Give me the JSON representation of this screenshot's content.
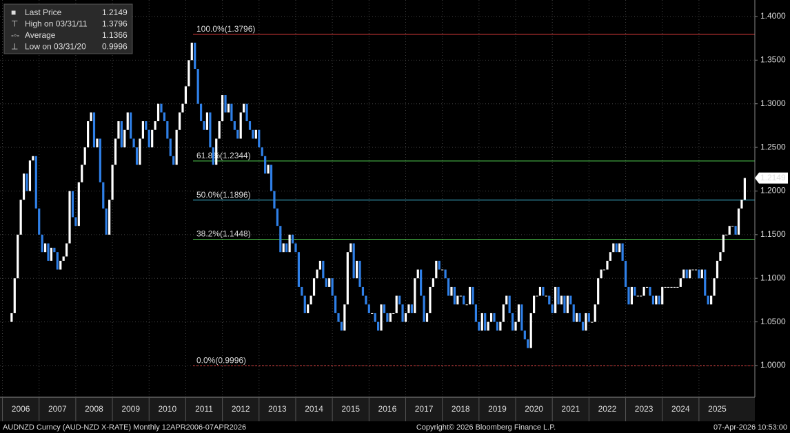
{
  "chart_data": {
    "type": "candlestick",
    "legend": [
      {
        "name": "Last Price",
        "value": 1.2149
      },
      {
        "name": "High on 03/31/11",
        "value": 1.3796
      },
      {
        "name": "Average",
        "value": 1.1366
      },
      {
        "name": "Low on 03/31/20",
        "value": 0.9996
      }
    ],
    "last_price": 1.2149,
    "open": 1.05,
    "close": [
      1.06,
      1.1,
      1.15,
      1.19,
      1.22,
      1.2,
      1.235,
      1.24,
      1.18,
      1.15,
      1.13,
      1.14,
      1.12,
      1.135,
      1.13,
      1.11,
      1.12,
      1.125,
      1.14,
      1.2,
      1.17,
      1.16,
      1.21,
      1.23,
      1.25,
      1.28,
      1.29,
      1.25,
      1.26,
      1.21,
      1.18,
      1.15,
      1.19,
      1.23,
      1.26,
      1.28,
      1.25,
      1.27,
      1.29,
      1.26,
      1.25,
      1.23,
      1.26,
      1.28,
      1.27,
      1.25,
      1.27,
      1.28,
      1.3,
      1.29,
      1.28,
      1.26,
      1.24,
      1.23,
      1.27,
      1.29,
      1.3,
      1.32,
      1.35,
      1.37,
      1.34,
      1.3,
      1.28,
      1.27,
      1.29,
      1.25,
      1.23,
      1.26,
      1.28,
      1.31,
      1.29,
      1.3,
      1.28,
      1.27,
      1.26,
      1.29,
      1.3,
      1.28,
      1.27,
      1.26,
      1.27,
      1.25,
      1.24,
      1.22,
      1.23,
      1.2,
      1.18,
      1.16,
      1.13,
      1.14,
      1.13,
      1.15,
      1.14,
      1.13,
      1.09,
      1.08,
      1.06,
      1.07,
      1.08,
      1.1,
      1.11,
      1.12,
      1.1,
      1.09,
      1.1,
      1.08,
      1.06,
      1.05,
      1.04,
      1.07,
      1.13,
      1.14,
      1.1,
      1.12,
      1.09,
      1.08,
      1.07,
      1.06,
      1.06,
      1.05,
      1.04,
      1.07,
      1.06,
      1.05,
      1.06,
      1.06,
      1.08,
      1.07,
      1.05,
      1.06,
      1.07,
      1.06,
      1.1,
      1.11,
      1.08,
      1.05,
      1.06,
      1.09,
      1.1,
      1.12,
      1.11,
      1.11,
      1.1,
      1.08,
      1.09,
      1.07,
      1.08,
      1.08,
      1.07,
      1.07,
      1.09,
      1.07,
      1.05,
      1.04,
      1.06,
      1.04,
      1.05,
      1.06,
      1.05,
      1.04,
      1.05,
      1.07,
      1.08,
      1.06,
      1.04,
      1.05,
      1.07,
      1.04,
      1.03,
      1.02,
      1.06,
      1.08,
      1.08,
      1.09,
      1.08,
      1.08,
      1.07,
      1.06,
      1.09,
      1.07,
      1.08,
      1.06,
      1.08,
      1.07,
      1.05,
      1.06,
      1.05,
      1.04,
      1.06,
      1.05,
      1.05,
      1.07,
      1.1,
      1.11,
      1.11,
      1.12,
      1.13,
      1.14,
      1.13,
      1.14,
      1.12,
      1.09,
      1.07,
      1.09,
      1.08,
      1.08,
      1.08,
      1.09,
      1.09,
      1.08,
      1.07,
      1.08,
      1.07,
      1.09,
      1.09,
      1.09,
      1.09,
      1.09,
      1.09,
      1.1,
      1.11,
      1.1,
      1.11,
      1.11,
      1.11,
      1.1,
      1.11,
      1.08,
      1.07,
      1.08,
      1.1,
      1.12,
      1.13,
      1.15,
      1.15,
      1.16,
      1.16,
      1.15,
      1.18,
      1.19,
      1.2149
    ],
    "up_color": "#ffffff",
    "down_color": "#2f80e8",
    "levels": [
      {
        "value": 1.3796,
        "label": "100.0%(1.3796)",
        "color": "#e03c3c"
      },
      {
        "value": 1.2344,
        "label": "61.8%(1.2344)",
        "color": "#4fcf4f"
      },
      {
        "value": 1.1896,
        "label": "50.0%(1.1896)",
        "color": "#44c8e8"
      },
      {
        "value": 1.1448,
        "label": "38.2%(1.1448)",
        "color": "#4fcf4f"
      },
      {
        "value": 0.9996,
        "label": "0.0%(0.9996)",
        "color": "#e03c3c"
      }
    ],
    "ylim": [
      0.9637,
      1.4189
    ],
    "yticks": [
      {
        "value": 1.0,
        "label": "1.0000"
      },
      {
        "value": 1.05,
        "label": "1.0500"
      },
      {
        "value": 1.1,
        "label": "1.1000"
      },
      {
        "value": 1.15,
        "label": "1.1500"
      },
      {
        "value": 1.2,
        "label": "1.2000"
      },
      {
        "value": 1.25,
        "label": "1.2500"
      },
      {
        "value": 1.3,
        "label": "1.3000"
      },
      {
        "value": 1.35,
        "label": "1.3500"
      },
      {
        "value": 1.4,
        "label": "1.4000"
      }
    ],
    "xlim": [
      -3.8,
      243.3
    ],
    "xticks": [
      {
        "value": -3,
        "label": "2006"
      },
      {
        "value": 9,
        "label": "2007"
      },
      {
        "value": 21,
        "label": "2008"
      },
      {
        "value": 33,
        "label": "2009"
      },
      {
        "value": 45,
        "label": "2010"
      },
      {
        "value": 57,
        "label": "2011"
      },
      {
        "value": 69,
        "label": "2012"
      },
      {
        "value": 81,
        "label": "2013"
      },
      {
        "value": 93,
        "label": "2014"
      },
      {
        "value": 105,
        "label": "2015"
      },
      {
        "value": 117,
        "label": "2016"
      },
      {
        "value": 129,
        "label": "2017"
      },
      {
        "value": 141,
        "label": "2018"
      },
      {
        "value": 153,
        "label": "2019"
      },
      {
        "value": 165,
        "label": "2020"
      },
      {
        "value": 177,
        "label": "2021"
      },
      {
        "value": 189,
        "label": "2022"
      },
      {
        "value": 201,
        "label": "2023"
      },
      {
        "value": 213,
        "label": "2024"
      },
      {
        "value": 225,
        "label": "2025"
      }
    ],
    "grid": true,
    "footer_left": "AUDNZD Curncy (AUD-NZD X-RATE) Monthly 12APR2006-07APR2026",
    "footer_center": "Copyright© 2026 Bloomberg Finance L.P.",
    "footer_right": "07-Apr-2026 10:53:00"
  }
}
